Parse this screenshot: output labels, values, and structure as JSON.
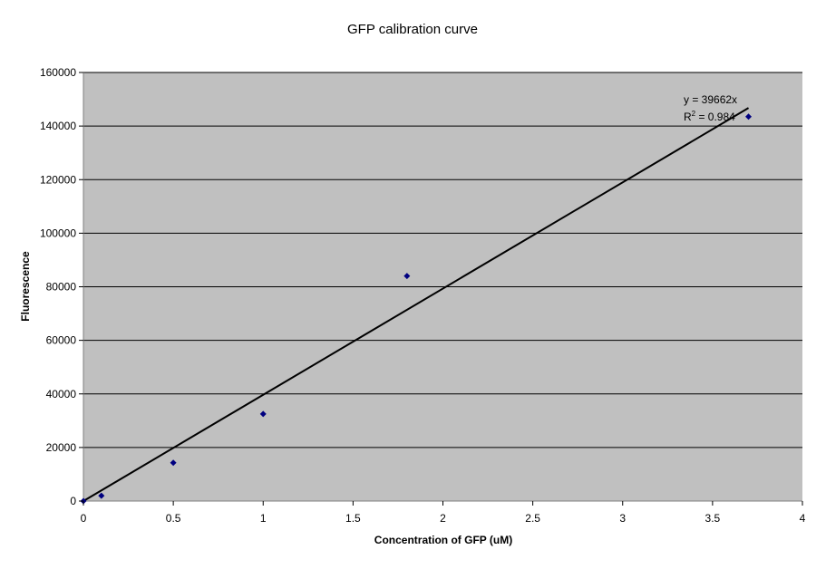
{
  "chart_data": {
    "type": "scatter",
    "title": "GFP calibration curve",
    "xlabel": "Concentration of GFP (uM)",
    "ylabel": "Fluorescence",
    "xlim": [
      0,
      4
    ],
    "ylim": [
      0,
      160000
    ],
    "x_ticks": [
      "0",
      "0.5",
      "1",
      "1.5",
      "2",
      "2.5",
      "3",
      "3.5",
      "4"
    ],
    "y_ticks": [
      "0",
      "20000",
      "40000",
      "60000",
      "80000",
      "100000",
      "120000",
      "140000",
      "160000"
    ],
    "grid": "horizontal",
    "legend": "none",
    "series": [
      {
        "points": [
          {
            "x": 0,
            "y": 0
          },
          {
            "x": 0.1,
            "y": 2000
          },
          {
            "x": 0.5,
            "y": 14300
          },
          {
            "x": 1.0,
            "y": 32500
          },
          {
            "x": 1.8,
            "y": 84000
          },
          {
            "x": 3.7,
            "y": 143500
          }
        ],
        "color": "#000080",
        "marker": "diamond"
      }
    ],
    "trendline": {
      "slope": 39662,
      "x_range": [
        0,
        3.7
      ],
      "color": "#000000",
      "equation": "y = 39662x",
      "r2_label": "R",
      "r2_superscript": "2",
      "r2_value": " = 0.984"
    },
    "colors": {
      "plot_background": "#c0c0c0",
      "gridline": "#000000",
      "marker": "#000080"
    }
  }
}
